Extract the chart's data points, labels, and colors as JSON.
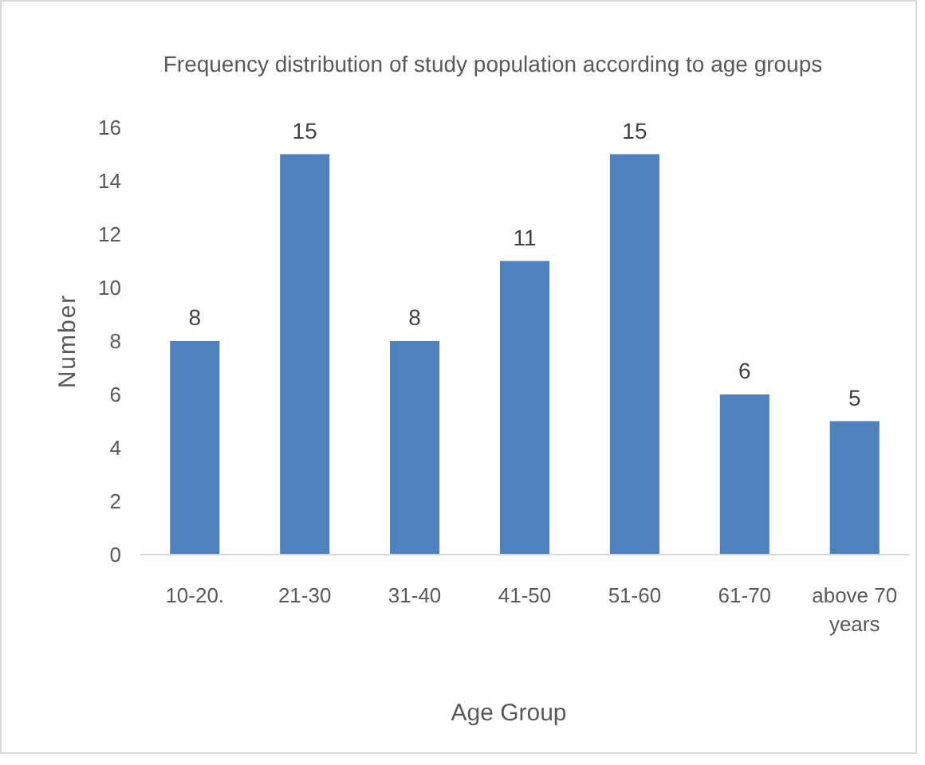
{
  "chart_data": {
    "type": "bar",
    "title": "Frequency distribution of study population according to age groups",
    "xlabel": "Age Group",
    "ylabel": "Number",
    "categories": [
      "10-20.",
      "21-30",
      "31-40",
      "41-50",
      "51-60",
      "61-70",
      "above 70 years"
    ],
    "values": [
      8,
      15,
      8,
      11,
      15,
      6,
      5
    ],
    "color": "#4f81bd",
    "ylim": [
      0,
      16
    ],
    "yticks": [
      0,
      2,
      4,
      6,
      8,
      10,
      12,
      14,
      16
    ],
    "grid": false,
    "data_labels": true
  }
}
